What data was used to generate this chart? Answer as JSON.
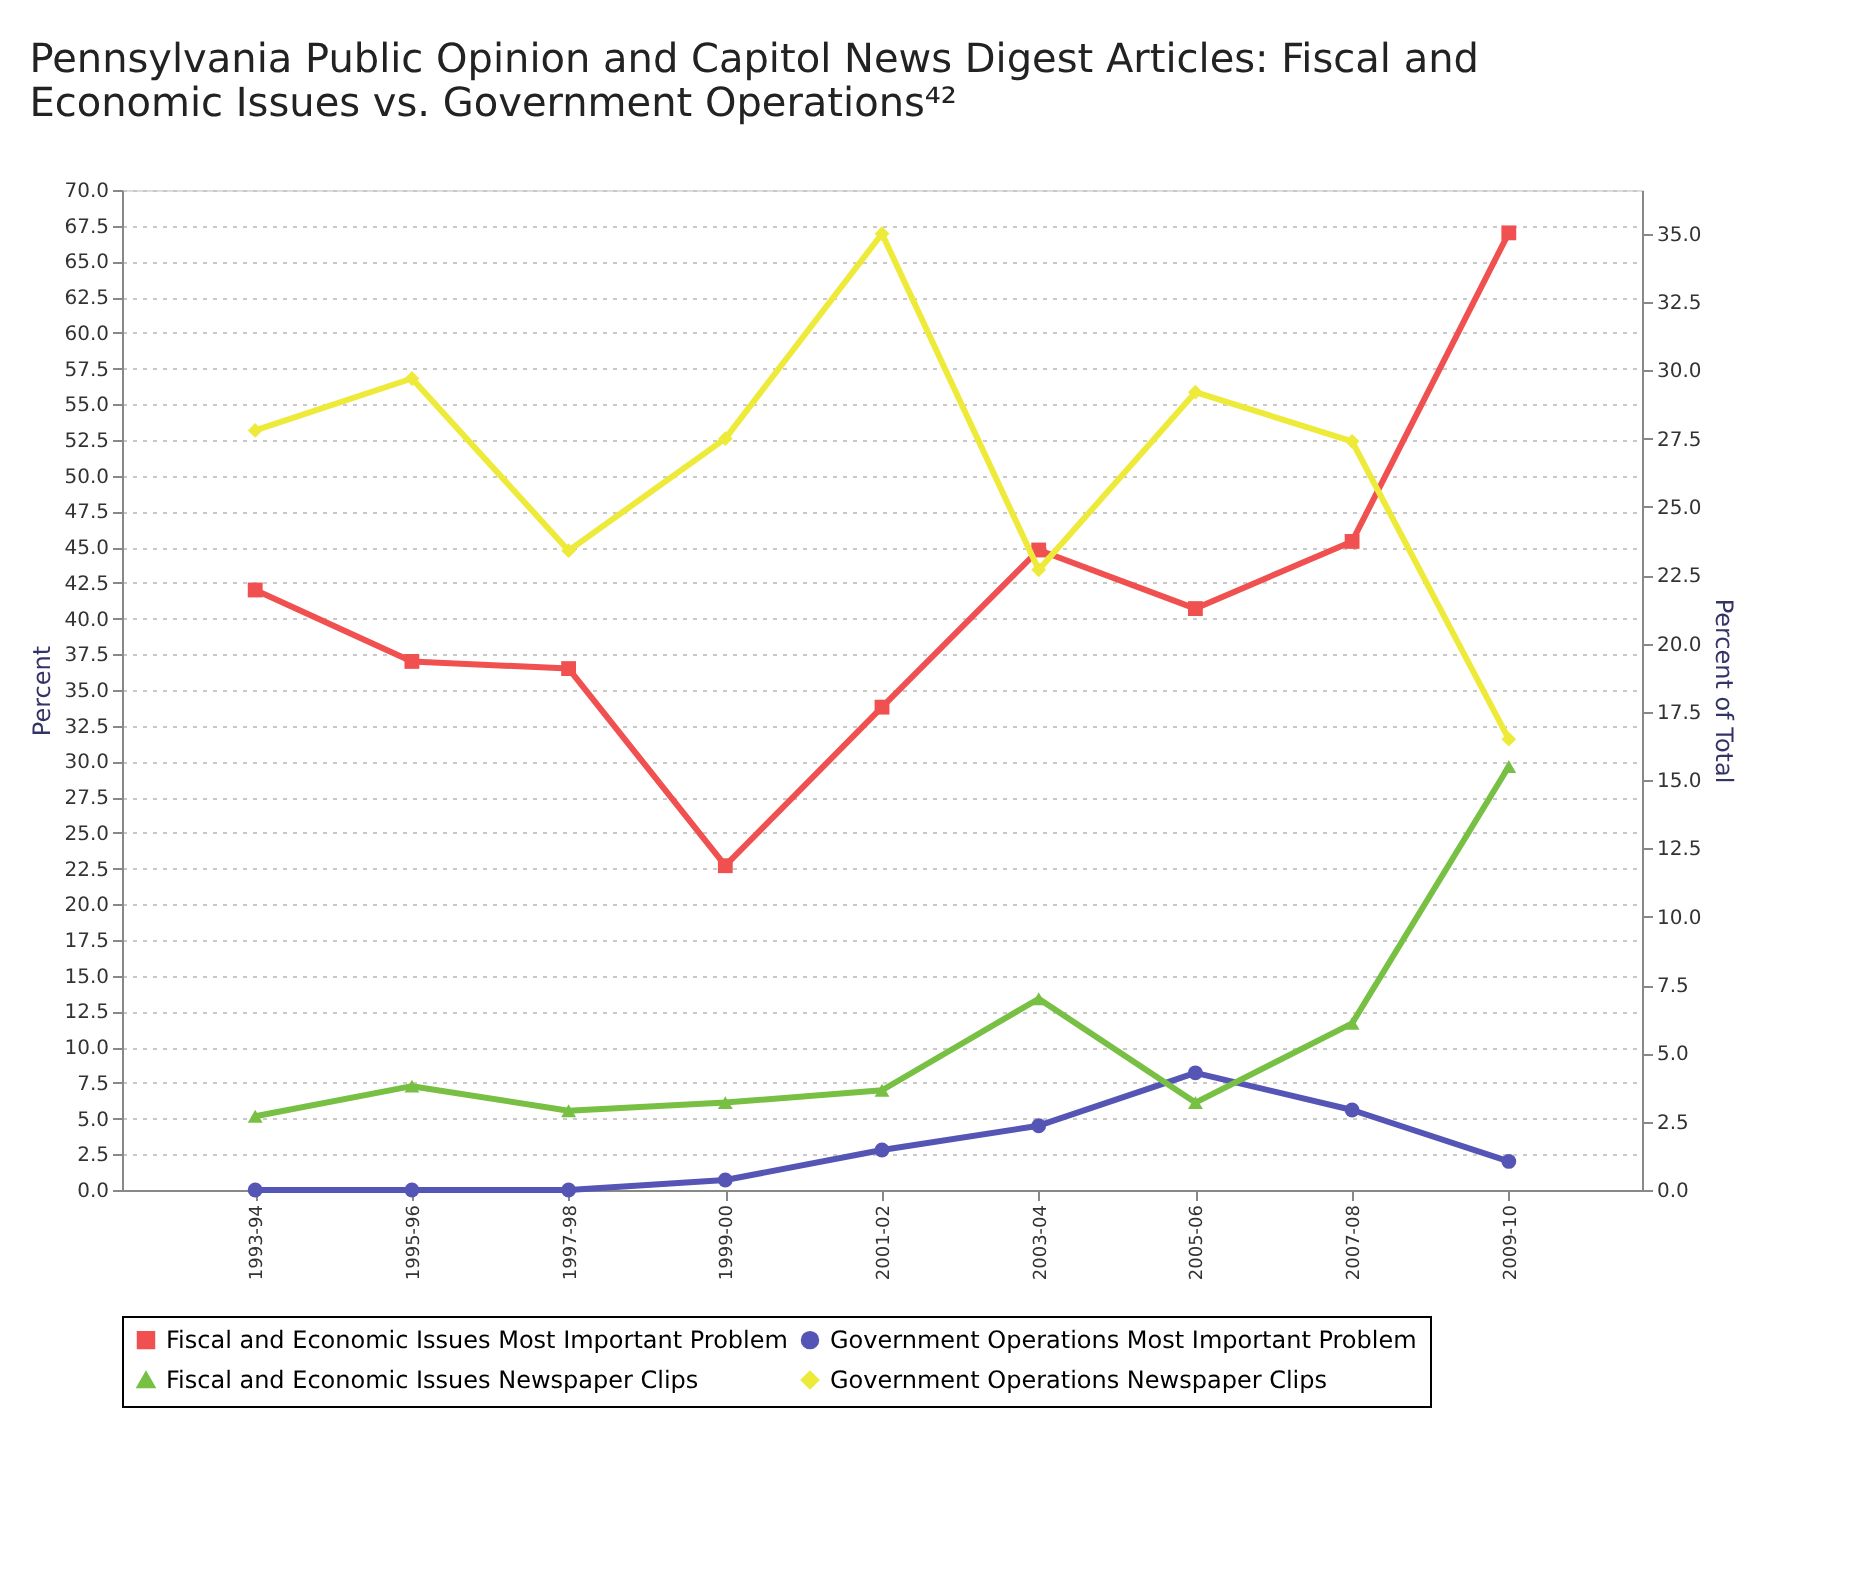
{
  "chart_data": {
    "type": "line",
    "title": "Pennsylvania Public Opinion and Capitol News Digest Articles: Fiscal and Economic Issues vs. Government Operations⁴²",
    "categories": [
      "1993-94",
      "1995-96",
      "1997-98",
      "1999-00",
      "2001-02",
      "2003-04",
      "2005-06",
      "2007-08",
      "2009-10"
    ],
    "ylabel": "Percent",
    "y2label": "Percent of Total",
    "ylim": [
      0,
      70
    ],
    "yticks": [
      {
        "value": 0,
        "label": "0.0"
      },
      2.5,
      {
        "value": 5,
        "label": "5.0"
      },
      7.5,
      {
        "value": 10,
        "label": "10.0"
      },
      12.5,
      {
        "value": 15,
        "label": "15.0"
      },
      17.5,
      {
        "value": 20,
        "label": "20.0"
      },
      22.5,
      {
        "value": 25,
        "label": "25.0"
      },
      27.5,
      {
        "value": 30,
        "label": "30.0"
      },
      32.5,
      {
        "value": 35,
        "label": "35.0"
      },
      37.5,
      {
        "value": 40,
        "label": "40.0"
      },
      42.5,
      {
        "value": 45,
        "label": "45.0"
      },
      47.5,
      {
        "value": 50,
        "label": "50.0"
      },
      52.5,
      {
        "value": 55,
        "label": "55.0"
      },
      57.5,
      {
        "value": 60,
        "label": "60.0"
      },
      62.5,
      {
        "value": 65,
        "label": "65.0"
      },
      67.5,
      {
        "value": 70,
        "label": "70.0"
      }
    ],
    "y2lim": [
      0,
      36.6
    ],
    "y2ticks": [
      {
        "value": 0,
        "label": "0.0"
      },
      2.5,
      {
        "value": 5,
        "label": "5.0"
      },
      7.5,
      {
        "value": 10,
        "label": "10.0"
      },
      12.5,
      {
        "value": 15,
        "label": "15.0"
      },
      17.5,
      {
        "value": 20,
        "label": "20.0"
      },
      22.5,
      {
        "value": 25,
        "label": "25.0"
      },
      27.5,
      {
        "value": 30,
        "label": "30.0"
      },
      32.5,
      {
        "value": 35,
        "label": "35.0"
      }
    ],
    "grid": "y",
    "legend": "bottom",
    "series": [
      {
        "name": "Fiscal and Economic Issues Most Important Problem",
        "color": "#f05050",
        "marker": "square",
        "values": [
          42.0,
          37.0,
          36.5,
          22.7,
          33.8,
          44.8,
          40.7,
          45.4,
          67.0
        ]
      },
      {
        "name": "Government Operations Most Important Problem",
        "color": "#5555b5",
        "marker": "circle",
        "values": [
          0.0,
          0.0,
          0.0,
          0.7,
          2.8,
          4.5,
          8.2,
          5.6,
          2.0
        ]
      },
      {
        "name": "Fiscal and Economic Issues Newspaper Clips",
        "color": "#77c043",
        "marker": "triangle",
        "axis": "y2",
        "values": [
          2.7,
          3.8,
          2.9,
          3.2,
          3.65,
          7.0,
          3.2,
          6.1,
          15.5
        ]
      },
      {
        "name": "Government Operations Newspaper Clips",
        "color": "#eeea3a",
        "marker": "diamond",
        "axis": "y2",
        "values": [
          27.8,
          29.7,
          23.4,
          27.5,
          35.0,
          22.7,
          29.2,
          27.4,
          16.5
        ]
      }
    ]
  }
}
